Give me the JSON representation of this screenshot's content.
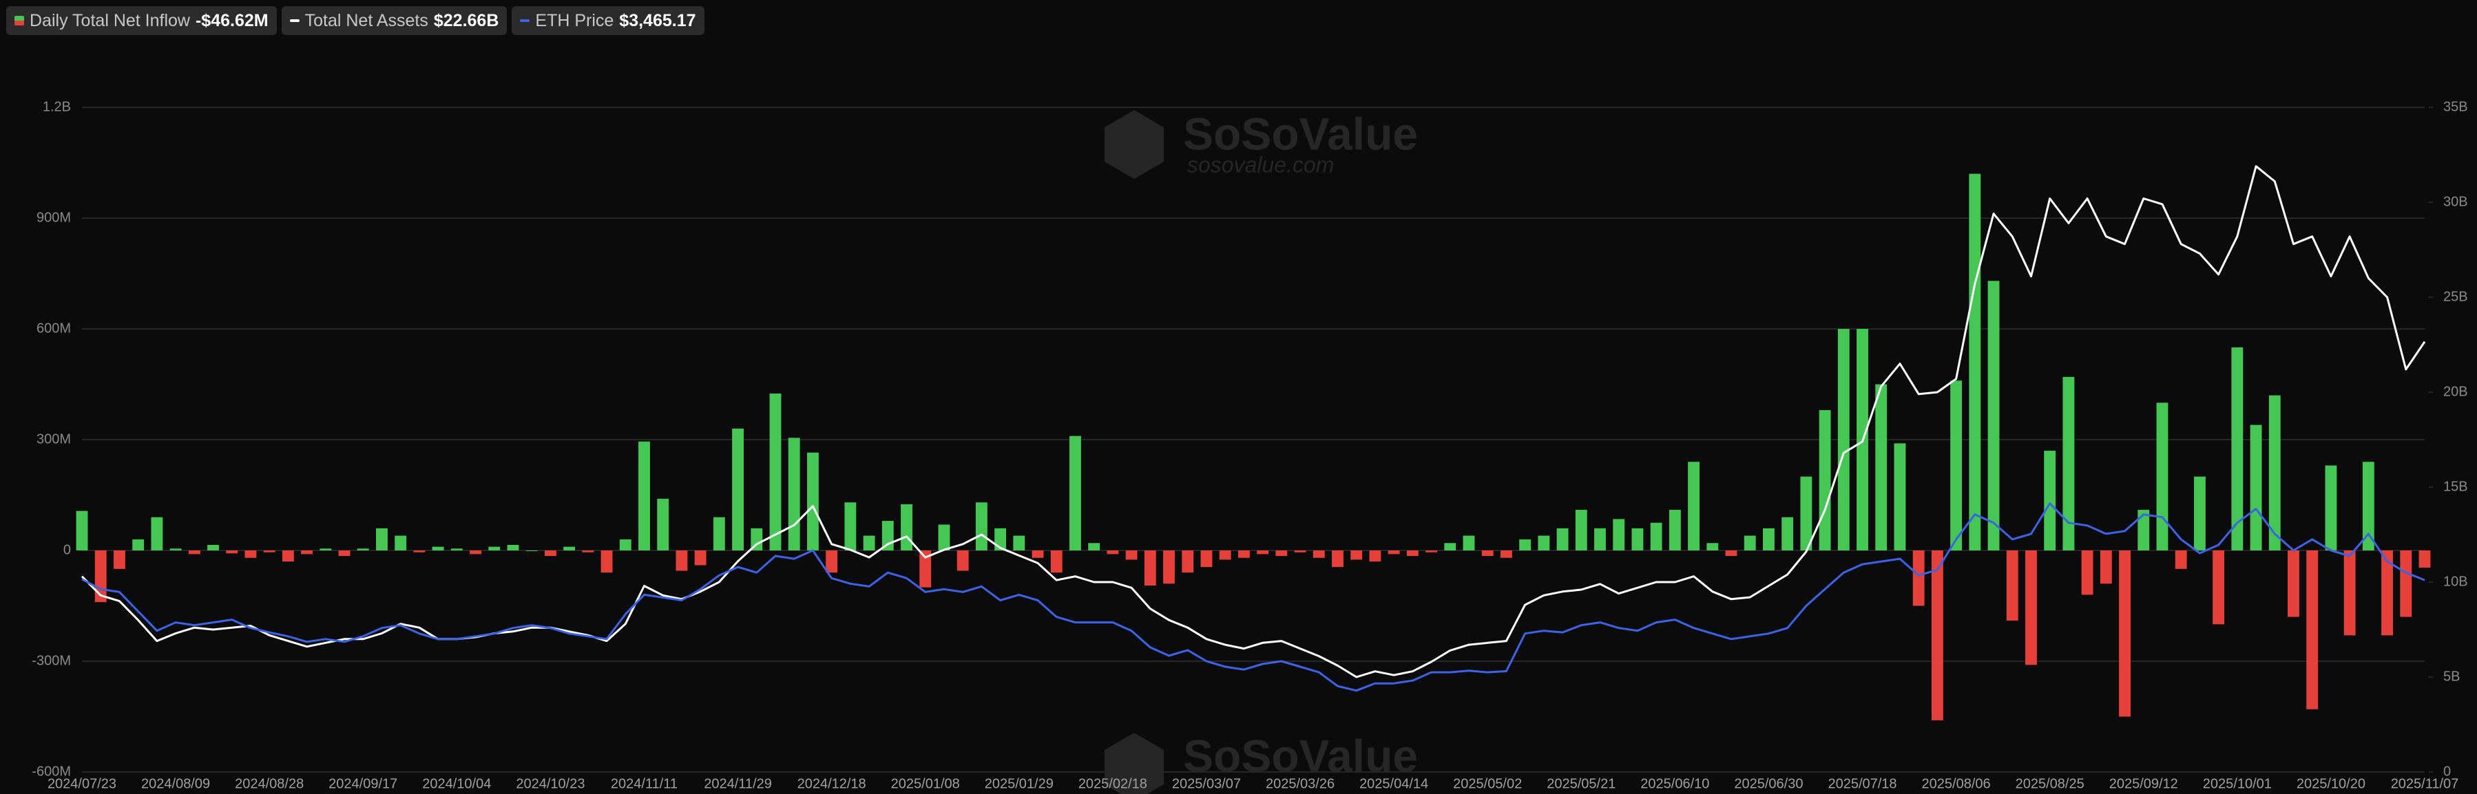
{
  "chart_data": {
    "type": "bar",
    "watermark": "SoSoValue",
    "watermark_url": "sosovalue.com",
    "categories": [
      "2024/07/23",
      null,
      null,
      null,
      null,
      "2024/08/09",
      null,
      null,
      null,
      null,
      "2024/08/28",
      null,
      null,
      null,
      null,
      "2024/09/17",
      null,
      null,
      null,
      null,
      "2024/10/04",
      null,
      null,
      null,
      null,
      "2024/10/23",
      null,
      null,
      null,
      null,
      "2024/11/11",
      null,
      null,
      null,
      null,
      "2024/11/29",
      null,
      null,
      null,
      null,
      "2024/12/18",
      null,
      null,
      null,
      null,
      "2025/01/08",
      null,
      null,
      null,
      null,
      "2025/01/29",
      null,
      null,
      null,
      null,
      "2025/02/18",
      null,
      null,
      null,
      null,
      "2025/03/07",
      null,
      null,
      null,
      null,
      "2025/03/26",
      null,
      null,
      null,
      null,
      "2025/04/14",
      null,
      null,
      null,
      null,
      "2025/05/02",
      null,
      null,
      null,
      null,
      "2025/05/21",
      null,
      null,
      null,
      null,
      "2025/06/10",
      null,
      null,
      null,
      null,
      "2025/06/30",
      null,
      null,
      null,
      null,
      "2025/07/18",
      null,
      null,
      null,
      null,
      "2025/08/06",
      null,
      null,
      null,
      null,
      "2025/08/25",
      null,
      null,
      null,
      null,
      "2025/09/12",
      null,
      null,
      null,
      null,
      "2025/10/01",
      null,
      null,
      null,
      null,
      "2025/10/20",
      null,
      null,
      null,
      null,
      "2025/11/07"
    ],
    "series": [
      {
        "name": "Daily Total Net Inflow",
        "legend_value": "-$46.62M",
        "axis": "y",
        "positive_color": "#45c655",
        "negative_color": "#e5403a",
        "color": "#45c655",
        "values": [
          107,
          -140,
          -50,
          30,
          90,
          5,
          -10,
          15,
          -8,
          -20,
          -5,
          -30,
          -10,
          5,
          -15,
          5,
          60,
          40,
          -5,
          10,
          5,
          -10,
          10,
          15,
          0,
          -15,
          10,
          -5,
          -60,
          30,
          295,
          140,
          -55,
          -40,
          90,
          330,
          60,
          425,
          305,
          265,
          -60,
          130,
          40,
          80,
          125,
          -100,
          70,
          -55,
          130,
          60,
          40,
          -20,
          -60,
          310,
          20,
          -10,
          -25,
          -95,
          -90,
          -60,
          -45,
          -25,
          -20,
          -10,
          -15,
          -5,
          -20,
          -45,
          -25,
          -30,
          -10,
          -15,
          -5,
          20,
          40,
          -15,
          -20,
          30,
          40,
          60,
          110,
          60,
          85,
          60,
          75,
          110,
          240,
          20,
          -15,
          40,
          60,
          90,
          200,
          380,
          600,
          600,
          450,
          290,
          -150,
          -460,
          460,
          1020,
          730,
          -190,
          -310,
          270,
          470,
          -120,
          -90,
          -450,
          110,
          400,
          -50,
          200,
          -200,
          550,
          340,
          420,
          -180,
          -430,
          230,
          -230,
          240,
          -230,
          -180,
          -46.62
        ]
      },
      {
        "name": "Total Net Assets",
        "legend_value": "$22.66B",
        "type": "line",
        "axis": "y2",
        "color": "#ffffff",
        "values": [
          10.3,
          9.3,
          9.0,
          8.0,
          6.9,
          7.3,
          7.6,
          7.5,
          7.6,
          7.7,
          7.2,
          6.9,
          6.6,
          6.8,
          7.0,
          7.0,
          7.3,
          7.8,
          7.6,
          7.0,
          7.0,
          7.1,
          7.3,
          7.4,
          7.6,
          7.6,
          7.4,
          7.2,
          6.9,
          7.8,
          9.8,
          9.3,
          9.1,
          9.5,
          10.0,
          11.1,
          12.0,
          12.5,
          13.0,
          14.0,
          12.0,
          11.7,
          11.3,
          12.0,
          12.4,
          11.3,
          11.7,
          12.0,
          12.5,
          11.8,
          11.4,
          11.0,
          10.1,
          10.3,
          10.0,
          10.0,
          9.7,
          8.6,
          8.0,
          7.6,
          7.0,
          6.7,
          6.5,
          6.8,
          6.9,
          6.5,
          6.1,
          5.6,
          5.0,
          5.3,
          5.1,
          5.3,
          5.8,
          6.4,
          6.7,
          6.8,
          6.9,
          8.8,
          9.3,
          9.5,
          9.6,
          9.9,
          9.4,
          9.7,
          10.0,
          10.0,
          10.3,
          9.5,
          9.1,
          9.2,
          9.8,
          10.4,
          11.6,
          13.8,
          16.8,
          17.4,
          20.3,
          21.5,
          19.9,
          20.0,
          20.7,
          25.7,
          29.4,
          28.2,
          26.1,
          30.2,
          28.9,
          30.2,
          28.2,
          27.8,
          30.2,
          29.9,
          27.8,
          27.3,
          26.2,
          28.2,
          31.9,
          31.1,
          27.8,
          28.2,
          26.1,
          28.2,
          26.0,
          25.0,
          21.2,
          22.66
        ]
      },
      {
        "name": "ETH Price",
        "legend_value": "$3,465.17",
        "type": "line",
        "axis": "y3",
        "color": "#3d63e6",
        "values": [
          3480,
          3300,
          3250,
          2900,
          2550,
          2700,
          2650,
          2700,
          2750,
          2600,
          2520,
          2450,
          2350,
          2400,
          2350,
          2450,
          2600,
          2650,
          2500,
          2400,
          2400,
          2450,
          2500,
          2600,
          2650,
          2600,
          2500,
          2450,
          2400,
          2850,
          3200,
          3150,
          3100,
          3300,
          3550,
          3700,
          3600,
          3900,
          3850,
          4000,
          3500,
          3400,
          3350,
          3600,
          3500,
          3250,
          3300,
          3250,
          3350,
          3100,
          3200,
          3100,
          2800,
          2700,
          2700,
          2700,
          2550,
          2250,
          2100,
          2200,
          2000,
          1900,
          1850,
          1950,
          2000,
          1900,
          1800,
          1550,
          1470,
          1600,
          1600,
          1650,
          1800,
          1800,
          1830,
          1800,
          1820,
          2500,
          2550,
          2520,
          2650,
          2700,
          2600,
          2550,
          2700,
          2750,
          2600,
          2500,
          2400,
          2450,
          2500,
          2600,
          3000,
          3300,
          3600,
          3750,
          3800,
          3850,
          3550,
          3650,
          4200,
          4650,
          4500,
          4200,
          4300,
          4850,
          4500,
          4450,
          4300,
          4350,
          4650,
          4600,
          4200,
          3950,
          4100,
          4500,
          4750,
          4300,
          4000,
          4200,
          4000,
          3900,
          4300,
          3800,
          3600,
          3465.17
        ]
      }
    ],
    "ylim": [
      -600,
      1200
    ],
    "yticks": [
      {
        "value": -600,
        "label": "-600M"
      },
      {
        "value": -300,
        "label": "-300M"
      },
      0,
      {
        "value": 300,
        "label": "300M"
      },
      {
        "value": 600,
        "label": "600M"
      },
      {
        "value": 900,
        "label": "900M"
      },
      {
        "value": 1200,
        "label": "1.2B"
      }
    ],
    "y2lim": [
      0,
      35
    ],
    "y2ticks": [
      0,
      {
        "value": 5,
        "label": "5B"
      },
      {
        "value": 10,
        "label": "10B"
      },
      {
        "value": 15,
        "label": "15B"
      },
      {
        "value": 20,
        "label": "20B"
      },
      {
        "value": 25,
        "label": "25B"
      },
      {
        "value": 30,
        "label": "30B"
      },
      {
        "value": 35,
        "label": "35B"
      }
    ],
    "y3lim": [
      0,
      12000
    ],
    "grid": true
  }
}
